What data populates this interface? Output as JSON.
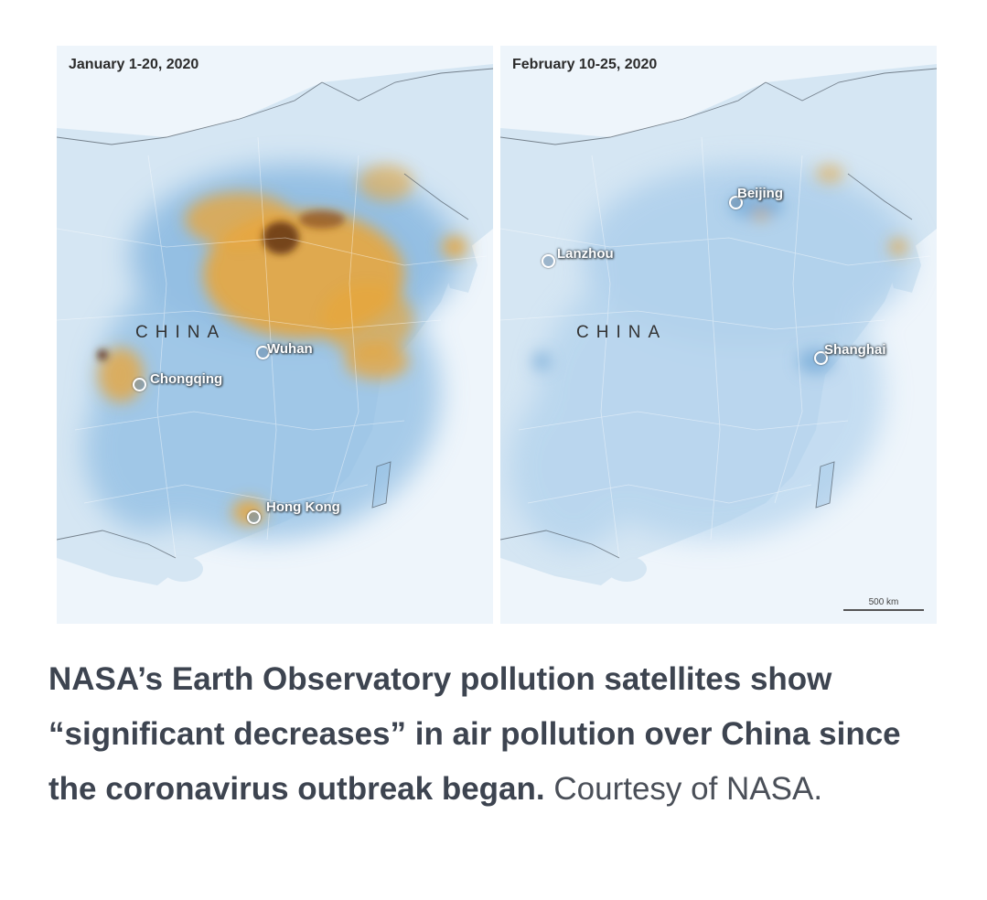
{
  "maps": [
    {
      "date": "January 1-20, 2020",
      "region": "CHINA",
      "cities": [
        "Wuhan",
        "Chongqing",
        "Hong Kong"
      ]
    },
    {
      "date": "February 10-25, 2020",
      "region": "CHINA",
      "cities": [
        "Beijing",
        "Lanzhou",
        "Shanghai"
      ],
      "scale_label": "500 km"
    }
  ],
  "caption": {
    "bold": "NASA’s Earth Observatory pollution satellites show “significant decreases” in air pollution over China since the coronavirus outbreak began.",
    "normal": "Courtesy of NASA."
  },
  "colors": {
    "water": "#eef5fb",
    "land": "#c9ddef",
    "low_pollution": "#6fa6d6",
    "high_pollution": "#e8a33a",
    "peak_pollution": "#5a2a10"
  }
}
